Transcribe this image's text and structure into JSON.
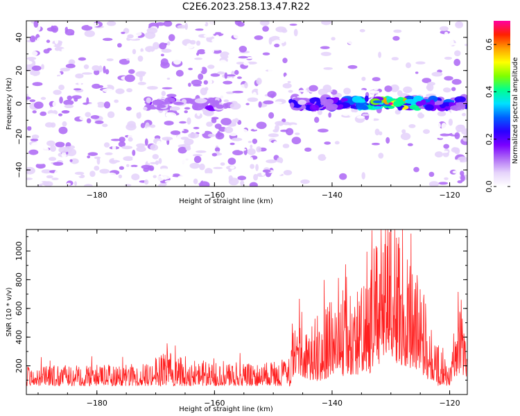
{
  "title": "C2E6.2023.258.13.47.R22",
  "chart_data": [
    {
      "type": "heatmap",
      "xlabel": "Height of straight line (km)",
      "ylabel": "Frequency (Hz)",
      "xlim": [
        -192,
        -117
      ],
      "ylim": [
        -50,
        50
      ],
      "xticks": [
        -180,
        -160,
        -140,
        -120
      ],
      "yticks": [
        -40,
        -20,
        0,
        20,
        40
      ],
      "colorbar": {
        "label": "Normalized spectral amplitude",
        "range": [
          0,
          0.7
        ],
        "ticks": [
          0.0,
          0.2,
          0.4,
          0.6
        ],
        "tick_labels": [
          "0.0",
          "0.2",
          "0.4",
          "0.6"
        ],
        "colormap": [
          "#ffffff",
          "#e6d4fb",
          "#b06ef5",
          "#7a00ff",
          "#2a00ff",
          "#0060ff",
          "#00e0ff",
          "#00ff90",
          "#80ff00",
          "#ffff00",
          "#ffa000",
          "#ff2000",
          "#ff00a0"
        ]
      },
      "features": {
        "signal_band_freq_hz": 0,
        "weak_signal_x_range": [
          -172,
          -159
        ],
        "strong_signal_x_range": [
          -147,
          -117
        ],
        "peak_amplitude_x": -130,
        "peak_amplitude": 0.7,
        "sparse_background_x_range": [
          -146,
          -122
        ]
      }
    },
    {
      "type": "line",
      "xlabel": "Height of straight line (km)",
      "ylabel": "SNR (10 * v/v)",
      "xlim": [
        -192,
        -117
      ],
      "ylim": [
        0,
        1150
      ],
      "xticks": [
        -180,
        -160,
        -140,
        -120
      ],
      "yticks": [
        200,
        400,
        600,
        800,
        1000
      ],
      "series": [
        {
          "color": "#ff2020",
          "x": [
            -192,
            -185,
            -178,
            -172,
            -168,
            -165,
            -162,
            -158,
            -154,
            -150,
            -147,
            -146,
            -145,
            -144,
            -142,
            -140,
            -139,
            -138,
            -136,
            -134,
            -132,
            -131,
            -130,
            -128,
            -126,
            -124,
            -122,
            -120,
            -118.5,
            -117
          ],
          "y": [
            150,
            150,
            155,
            160,
            220,
            180,
            165,
            165,
            160,
            165,
            200,
            520,
            480,
            350,
            380,
            500,
            620,
            480,
            560,
            520,
            850,
            1150,
            950,
            780,
            620,
            450,
            260,
            150,
            560,
            230
          ]
        }
      ]
    }
  ]
}
